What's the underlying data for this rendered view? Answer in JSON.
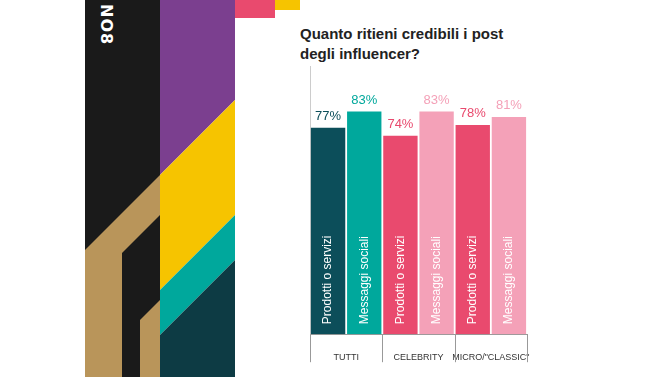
{
  "logo": "NO8",
  "chart_data": {
    "type": "bar",
    "title": "Quanto ritieni credibili i post degli influencer?",
    "categories": [
      "TUTTI",
      "CELEBRITY",
      "MICRO/\"CLASSIC\""
    ],
    "series": [
      {
        "name": "Prodotti o servizi",
        "colors": [
          "#0c4e5a",
          "#e94a6e",
          "#e94a6e"
        ],
        "values": [
          77,
          74,
          78
        ],
        "value_labels": [
          "77%",
          "74%",
          "78%"
        ]
      },
      {
        "name": "Messaggi sociali",
        "colors": [
          "#00a89c",
          "#f4a1b8",
          "#f4a1b8"
        ],
        "values": [
          83,
          83,
          81
        ],
        "value_labels": [
          "83%",
          "83%",
          "81%"
        ]
      }
    ],
    "ylim": [
      0,
      100
    ],
    "grid": false,
    "data_labels": true,
    "tick_labels": "x"
  }
}
